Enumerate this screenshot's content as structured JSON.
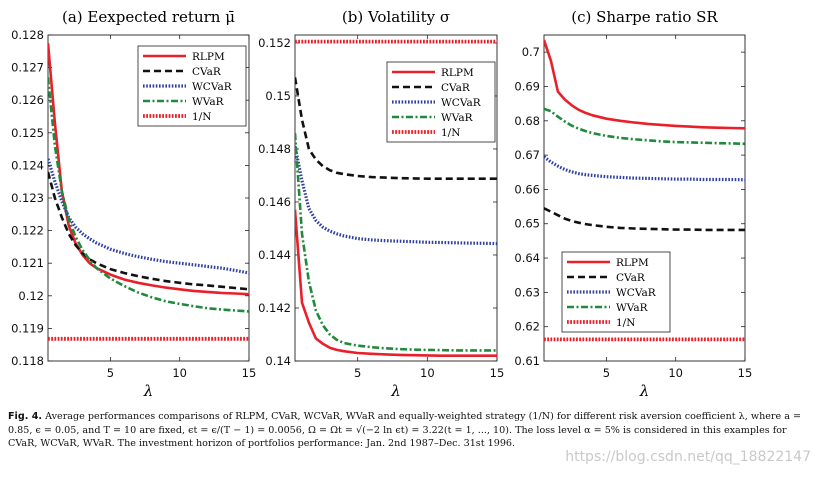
{
  "figure_label": "Fig. 4.",
  "caption_text": "Average performances comparisons of RLPM, CVaR, WCVaR, WVaR and equally-weighted strategy (1/N) for different risk aversion coefficient λ, where a = 0.85, ϵ = 0.05, and T = 10 are fixed, ϵt = ϵ/(T − 1) = 0.0056, Ω = Ωt = √(−2 ln ϵt) = 3.22(t = 1, ..., 10). The loss level α = 5% is considered in this examples for CVaR, WCVaR, WVaR. The investment horizon of portfolios performance: Jan. 2nd 1987–Dec. 31st 1996.",
  "watermark": "https://blog.csdn.net/qq_18822147",
  "series_styles": [
    {
      "name": "RLPM",
      "color": "#e8202a",
      "dash": "solid"
    },
    {
      "name": "CVaR",
      "color": "#111111",
      "dash": "dashed"
    },
    {
      "name": "WCVaR",
      "color": "#2e3fa0",
      "dash": "dotted"
    },
    {
      "name": "WVaR",
      "color": "#1f8a3b",
      "dash": "dashdot"
    },
    {
      "name": "1/N",
      "color": "#e8202a",
      "dash": "dotted-thick"
    }
  ],
  "chart_data": [
    {
      "type": "line",
      "title": "(a) Eexpected return μ̄",
      "xlabel": "λ",
      "ylabel": "",
      "xlim": [
        0.5,
        15
      ],
      "ylim": [
        0.118,
        0.128
      ],
      "xticks": [
        5,
        10,
        15
      ],
      "yticks": [
        0.118,
        0.119,
        0.12,
        0.121,
        0.122,
        0.123,
        0.124,
        0.125,
        0.126,
        0.127,
        0.128
      ],
      "ytick_labels": [
        "0.118",
        "0.119",
        "0.12",
        "0.121",
        "0.122",
        "0.123",
        "0.124",
        "0.125",
        "0.126",
        "0.127",
        "0.128"
      ],
      "legend": "top-right",
      "x": [
        0.5,
        1,
        1.5,
        2,
        2.5,
        3,
        3.5,
        4,
        5,
        6,
        7,
        8,
        9,
        10,
        11,
        12,
        13,
        14,
        15
      ],
      "series": [
        {
          "name": "RLPM",
          "values": [
            0.12775,
            0.1253,
            0.1232,
            0.12215,
            0.1216,
            0.12125,
            0.121,
            0.12085,
            0.12065,
            0.1205,
            0.1204,
            0.12032,
            0.12025,
            0.1202,
            0.12015,
            0.12012,
            0.12009,
            0.12007,
            0.12005
          ]
        },
        {
          "name": "CVaR",
          "values": [
            0.1238,
            0.123,
            0.1224,
            0.1219,
            0.12155,
            0.1213,
            0.12112,
            0.121,
            0.12082,
            0.1207,
            0.1206,
            0.12052,
            0.12045,
            0.1204,
            0.12035,
            0.12032,
            0.12028,
            0.12024,
            0.1202
          ]
        },
        {
          "name": "WCVaR",
          "values": [
            0.1242,
            0.1235,
            0.1229,
            0.1224,
            0.1221,
            0.1219,
            0.12175,
            0.12162,
            0.12143,
            0.1213,
            0.1212,
            0.12112,
            0.12105,
            0.121,
            0.12095,
            0.1209,
            0.12085,
            0.12078,
            0.1207
          ]
        },
        {
          "name": "WVaR",
          "values": [
            0.1267,
            0.1246,
            0.1232,
            0.12235,
            0.1218,
            0.1214,
            0.1211,
            0.12085,
            0.12053,
            0.1203,
            0.1201,
            0.11995,
            0.11983,
            0.11975,
            0.11968,
            0.11962,
            0.11958,
            0.11955,
            0.11952
          ]
        },
        {
          "name": "1/N",
          "values": [
            0.11868,
            0.11868,
            0.11868,
            0.11868,
            0.11868,
            0.11868,
            0.11868,
            0.11868,
            0.11868,
            0.11868,
            0.11868,
            0.11868,
            0.11868,
            0.11868,
            0.11868,
            0.11868,
            0.11868,
            0.11868,
            0.11868
          ]
        }
      ]
    },
    {
      "type": "line",
      "title": "(b) Volatility σ",
      "xlabel": "λ",
      "ylabel": "",
      "xlim": [
        0.5,
        15
      ],
      "ylim": [
        0.14,
        0.1523
      ],
      "xticks": [
        5,
        10,
        15
      ],
      "yticks": [
        0.14,
        0.142,
        0.144,
        0.146,
        0.148,
        0.15,
        0.152
      ],
      "ytick_labels": [
        "0.14",
        "0.142",
        "0.144",
        "0.146",
        "0.148",
        "0.15",
        "0.152"
      ],
      "legend": "top-right",
      "x": [
        0.5,
        1,
        1.5,
        2,
        2.5,
        3,
        3.5,
        4,
        5,
        6,
        7,
        8,
        9,
        10,
        11,
        12,
        13,
        14,
        15
      ],
      "series": [
        {
          "name": "RLPM",
          "values": [
            0.1457,
            0.1422,
            0.14145,
            0.14085,
            0.14065,
            0.1405,
            0.14042,
            0.14037,
            0.1403,
            0.14027,
            0.14025,
            0.14023,
            0.14022,
            0.14021,
            0.1402,
            0.1402,
            0.1402,
            0.1402,
            0.1402
          ]
        },
        {
          "name": "CVaR",
          "values": [
            0.1507,
            0.1491,
            0.148,
            0.1476,
            0.14735,
            0.1472,
            0.1471,
            0.14705,
            0.14698,
            0.14694,
            0.14692,
            0.1469,
            0.14689,
            0.14688,
            0.14688,
            0.14688,
            0.14688,
            0.14688,
            0.14688
          ]
        },
        {
          "name": "WCVaR",
          "values": [
            0.1481,
            0.1468,
            0.14575,
            0.1453,
            0.14505,
            0.1449,
            0.1448,
            0.14472,
            0.14462,
            0.14457,
            0.14454,
            0.14452,
            0.1445,
            0.14448,
            0.14447,
            0.14446,
            0.14445,
            0.14444,
            0.14443
          ]
        },
        {
          "name": "WVaR",
          "values": [
            0.1486,
            0.1448,
            0.143,
            0.1419,
            0.14135,
            0.141,
            0.1408,
            0.14068,
            0.14058,
            0.14052,
            0.14048,
            0.14045,
            0.14043,
            0.14042,
            0.14041,
            0.1404,
            0.1404,
            0.1404,
            0.1404
          ]
        },
        {
          "name": "1/N",
          "values": [
            0.15205,
            0.15205,
            0.15205,
            0.15205,
            0.15205,
            0.15205,
            0.15205,
            0.15205,
            0.15205,
            0.15205,
            0.15205,
            0.15205,
            0.15205,
            0.15205,
            0.15205,
            0.15205,
            0.15205,
            0.15205,
            0.15205
          ]
        }
      ]
    },
    {
      "type": "line",
      "title": "(c) Sharpe ratio SR",
      "xlabel": "λ",
      "ylabel": "",
      "xlim": [
        0.5,
        15
      ],
      "ylim": [
        0.61,
        0.705
      ],
      "xticks": [
        5,
        10,
        15
      ],
      "yticks": [
        0.61,
        0.62,
        0.63,
        0.64,
        0.65,
        0.66,
        0.67,
        0.68,
        0.69,
        0.7
      ],
      "ytick_labels": [
        "0.61",
        "0.62",
        "0.63",
        "0.64",
        "0.65",
        "0.66",
        "0.67",
        "0.68",
        "0.69",
        "0.7"
      ],
      "legend": "bottom-left",
      "x": [
        0.5,
        1,
        1.5,
        2,
        2.5,
        3,
        3.5,
        4,
        5,
        6,
        7,
        8,
        9,
        10,
        11,
        12,
        13,
        14,
        15
      ],
      "series": [
        {
          "name": "RLPM",
          "values": [
            0.7035,
            0.6975,
            0.6885,
            0.6862,
            0.6845,
            0.6832,
            0.6823,
            0.6816,
            0.6806,
            0.68,
            0.6795,
            0.6791,
            0.6788,
            0.6785,
            0.6783,
            0.6781,
            0.678,
            0.6779,
            0.6778
          ]
        },
        {
          "name": "CVaR",
          "values": [
            0.6545,
            0.6535,
            0.6525,
            0.6515,
            0.6508,
            0.6503,
            0.6499,
            0.6496,
            0.6491,
            0.6488,
            0.6486,
            0.6485,
            0.6484,
            0.6483,
            0.6483,
            0.6482,
            0.6482,
            0.6482,
            0.6482
          ]
        },
        {
          "name": "WCVaR",
          "values": [
            0.6695,
            0.668,
            0.6668,
            0.6658,
            0.6651,
            0.6646,
            0.6643,
            0.6641,
            0.6637,
            0.6635,
            0.6633,
            0.6632,
            0.6631,
            0.663,
            0.663,
            0.6629,
            0.6629,
            0.6629,
            0.6628
          ]
        },
        {
          "name": "WVaR",
          "values": [
            0.6835,
            0.6828,
            0.6812,
            0.6798,
            0.6786,
            0.6777,
            0.677,
            0.6764,
            0.6756,
            0.675,
            0.6746,
            0.6743,
            0.674,
            0.6738,
            0.6737,
            0.6736,
            0.6735,
            0.6734,
            0.6733
          ]
        },
        {
          "name": "1/N",
          "values": [
            0.6163,
            0.6163,
            0.6163,
            0.6163,
            0.6163,
            0.6163,
            0.6163,
            0.6163,
            0.6163,
            0.6163,
            0.6163,
            0.6163,
            0.6163,
            0.6163,
            0.6163,
            0.6163,
            0.6163,
            0.6163,
            0.6163
          ]
        }
      ]
    }
  ]
}
